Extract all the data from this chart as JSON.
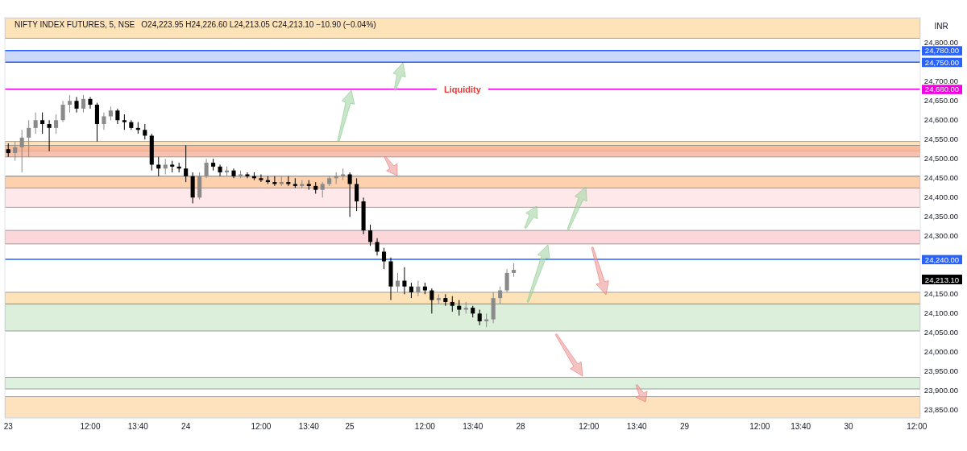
{
  "chart_data": {
    "type": "candlestick",
    "title": "NIFTY INDEX FUTURES, 5, NSE",
    "subtitle": "O24,223.95  H24,226.60  L24,213.05  C24,213.10  −10.90 (−0.04%)",
    "ylabel": "INR",
    "categories": [
      "23",
      null,
      null,
      null,
      null,
      null,
      null,
      null,
      null,
      null,
      null,
      null,
      "12:00",
      null,
      null,
      null,
      null,
      null,
      null,
      "13:40",
      null,
      null,
      null,
      null,
      null,
      null,
      "24",
      null,
      null,
      null,
      null,
      null,
      null,
      null,
      null,
      null,
      null,
      "12:00",
      null,
      null,
      null,
      null,
      null,
      null,
      "13:40",
      null,
      null,
      null,
      null,
      null,
      "25",
      null,
      null,
      null,
      null,
      null,
      null,
      null,
      null,
      null,
      null,
      "12:00",
      null,
      null,
      null,
      null,
      null,
      null,
      "13:40",
      null,
      null,
      null,
      null,
      null,
      null,
      "28",
      null,
      null,
      null,
      null,
      null,
      null,
      null,
      null,
      null,
      "12:00",
      null,
      null,
      null,
      null,
      null,
      null,
      "13:40",
      null,
      null,
      null,
      null,
      null,
      null,
      "29",
      null,
      null,
      null,
      null,
      null,
      null,
      null,
      null,
      null,
      null,
      "12:00",
      null,
      null,
      null,
      null,
      null,
      "13:40",
      null,
      null,
      null,
      null,
      null,
      null,
      "30",
      null,
      null,
      null,
      null,
      null,
      null,
      null,
      null,
      null,
      "12:00"
    ],
    "ohlc": [
      [
        24525,
        24540,
        24505,
        24515
      ],
      [
        24515,
        24545,
        24495,
        24530
      ],
      [
        24530,
        24575,
        24465,
        24555
      ],
      [
        24555,
        24600,
        24505,
        24580
      ],
      [
        24580,
        24620,
        24565,
        24600
      ],
      [
        24600,
        24620,
        24565,
        24590
      ],
      [
        24590,
        24600,
        24520,
        24580
      ],
      [
        24580,
        24615,
        24565,
        24600
      ],
      [
        24600,
        24650,
        24595,
        24640
      ],
      [
        24640,
        24665,
        24620,
        24650
      ],
      [
        24650,
        24660,
        24620,
        24630
      ],
      [
        24630,
        24665,
        24620,
        24655
      ],
      [
        24655,
        24660,
        24630,
        24640
      ],
      [
        24640,
        24645,
        24545,
        24590
      ],
      [
        24590,
        24620,
        24575,
        24610
      ],
      [
        24610,
        24635,
        24600,
        24625
      ],
      [
        24625,
        24630,
        24590,
        24600
      ],
      [
        24600,
        24615,
        24575,
        24595
      ],
      [
        24595,
        24600,
        24575,
        24580
      ],
      [
        24580,
        24595,
        24565,
        24575
      ],
      [
        24575,
        24590,
        24550,
        24560
      ],
      [
        24560,
        24565,
        24470,
        24485
      ],
      [
        24485,
        24505,
        24455,
        24475
      ],
      [
        24475,
        24500,
        24460,
        24485
      ],
      [
        24485,
        24495,
        24465,
        24480
      ],
      [
        24480,
        24490,
        24465,
        24475
      ],
      [
        24475,
        24535,
        24440,
        24455
      ],
      [
        24455,
        24465,
        24385,
        24400
      ],
      [
        24400,
        24465,
        24395,
        24455
      ],
      [
        24455,
        24500,
        24450,
        24490
      ],
      [
        24490,
        24500,
        24470,
        24480
      ],
      [
        24480,
        24485,
        24455,
        24465
      ],
      [
        24465,
        24480,
        24455,
        24470
      ],
      [
        24470,
        24475,
        24450,
        24455
      ],
      [
        24455,
        24470,
        24450,
        24460
      ],
      [
        24460,
        24465,
        24450,
        24455
      ],
      [
        24455,
        24465,
        24445,
        24450
      ],
      [
        24450,
        24460,
        24440,
        24445
      ],
      [
        24445,
        24455,
        24435,
        24440
      ],
      [
        24440,
        24455,
        24430,
        24435
      ],
      [
        24435,
        24455,
        24430,
        24440
      ],
      [
        24440,
        24455,
        24430,
        24435
      ],
      [
        24435,
        24450,
        24425,
        24430
      ],
      [
        24430,
        24445,
        24425,
        24435
      ],
      [
        24435,
        24445,
        24420,
        24430
      ],
      [
        24430,
        24440,
        24410,
        24420
      ],
      [
        24420,
        24440,
        24400,
        24435
      ],
      [
        24435,
        24455,
        24430,
        24450
      ],
      [
        24450,
        24465,
        24435,
        24455
      ],
      [
        24455,
        24475,
        24445,
        24460
      ],
      [
        24460,
        24465,
        24350,
        24435
      ],
      [
        24435,
        24450,
        24365,
        24390
      ],
      [
        24390,
        24400,
        24305,
        24315
      ],
      [
        24315,
        24330,
        24275,
        24285
      ],
      [
        24285,
        24295,
        24250,
        24260
      ],
      [
        24260,
        24270,
        24215,
        24235
      ],
      [
        24235,
        24245,
        24135,
        24170
      ],
      [
        24170,
        24205,
        24155,
        24185
      ],
      [
        24185,
        24220,
        24150,
        24170
      ],
      [
        24170,
        24180,
        24140,
        24155
      ],
      [
        24155,
        24185,
        24145,
        24170
      ],
      [
        24170,
        24180,
        24150,
        24160
      ],
      [
        24160,
        24165,
        24100,
        24135
      ],
      [
        24135,
        24150,
        24125,
        24140
      ],
      [
        24140,
        24150,
        24120,
        24130
      ],
      [
        24130,
        24145,
        24105,
        24120
      ],
      [
        24120,
        24135,
        24095,
        24110
      ],
      [
        24110,
        24130,
        24100,
        24115
      ],
      [
        24115,
        24120,
        24090,
        24100
      ],
      [
        24100,
        24110,
        24070,
        24080
      ],
      [
        24080,
        24100,
        24065,
        24085
      ],
      [
        24085,
        24155,
        24075,
        24140
      ],
      [
        24140,
        24170,
        24125,
        24160
      ],
      [
        24160,
        24215,
        24155,
        24205
      ],
      [
        24205,
        24230,
        24195,
        24213.1
      ],
      null,
      null,
      null,
      null,
      null,
      null,
      null,
      null,
      null,
      null,
      null,
      null,
      null,
      null,
      null,
      null,
      null,
      null,
      null,
      null,
      null,
      null,
      null,
      null,
      null,
      null,
      null,
      null,
      null,
      null,
      null,
      null,
      null,
      null,
      null,
      null,
      null,
      null,
      null,
      null,
      null,
      null,
      null,
      null,
      null,
      null,
      null,
      null,
      null,
      null,
      null,
      null,
      null,
      null,
      null,
      null,
      null,
      null,
      null
    ],
    "ylim": [
      23830,
      24865
    ],
    "yticks": [
      {
        "value": 23850,
        "label": "23,850.00"
      },
      {
        "value": 23900,
        "label": "23,900.00"
      },
      {
        "value": 23950,
        "label": "23,950.00"
      },
      {
        "value": 24000,
        "label": "24,000.00"
      },
      {
        "value": 24050,
        "label": "24,050.00"
      },
      {
        "value": 24100,
        "label": "24,100.00"
      },
      {
        "value": 24150,
        "label": "24,150.00"
      },
      {
        "value": 24300,
        "label": "24,300.00"
      },
      {
        "value": 24350,
        "label": "24,350.00"
      },
      {
        "value": 24400,
        "label": "24,400.00"
      },
      {
        "value": 24450,
        "label": "24,450.00"
      },
      {
        "value": 24500,
        "label": "24,500.00"
      },
      {
        "value": 24550,
        "label": "24,550.00"
      },
      {
        "value": 24600,
        "label": "24,600.00"
      },
      {
        "value": 24650,
        "label": "24,650.00"
      },
      {
        "value": 24700,
        "label": "24,700.00"
      },
      {
        "value": 24800,
        "label": "24,800.00"
      }
    ],
    "bands": [
      {
        "axis": "y",
        "from": 24812,
        "to": 24865,
        "color": "#fed8a0"
      },
      {
        "axis": "y",
        "from": 24750,
        "to": 24780,
        "color": "#b8cbf7"
      },
      {
        "axis": "y",
        "from": 24520,
        "to": 24545,
        "color": "#fed8a0"
      },
      {
        "axis": "y",
        "from": 24505,
        "to": 24535,
        "color": "#f6ad93"
      },
      {
        "axis": "y",
        "from": 24375,
        "to": 24455,
        "color": "#fde0e2"
      },
      {
        "axis": "y",
        "from": 24425,
        "to": 24455,
        "color": "#fdc99a"
      },
      {
        "axis": "y",
        "from": 24280,
        "to": 24315,
        "color": "#f9c9cd"
      },
      {
        "axis": "y",
        "from": 24125,
        "to": 24155,
        "color": "#fed8a0"
      },
      {
        "axis": "y",
        "from": 24055,
        "to": 24125,
        "color": "#cfeacf"
      },
      {
        "axis": "y",
        "from": 23905,
        "to": 23935,
        "color": "#d3ecd3"
      },
      {
        "axis": "y",
        "from": 23830,
        "to": 23885,
        "color": "#fed8a8"
      }
    ],
    "ref_lines": [
      {
        "axis": "y",
        "value": 24780,
        "label": "24,780.00",
        "color": "#2962ff"
      },
      {
        "axis": "y",
        "value": 24750,
        "label": "24,750.00",
        "color": "#2962ff"
      },
      {
        "axis": "y",
        "value": 24680,
        "label": "24,680.00",
        "color": "#f000e0"
      },
      {
        "axis": "y",
        "value": 24240,
        "label": "24,240.00",
        "color": "#2962ff"
      }
    ],
    "annotations": [
      {
        "text": "Liquidity",
        "y": 24680
      },
      "24,213.10"
    ]
  }
}
